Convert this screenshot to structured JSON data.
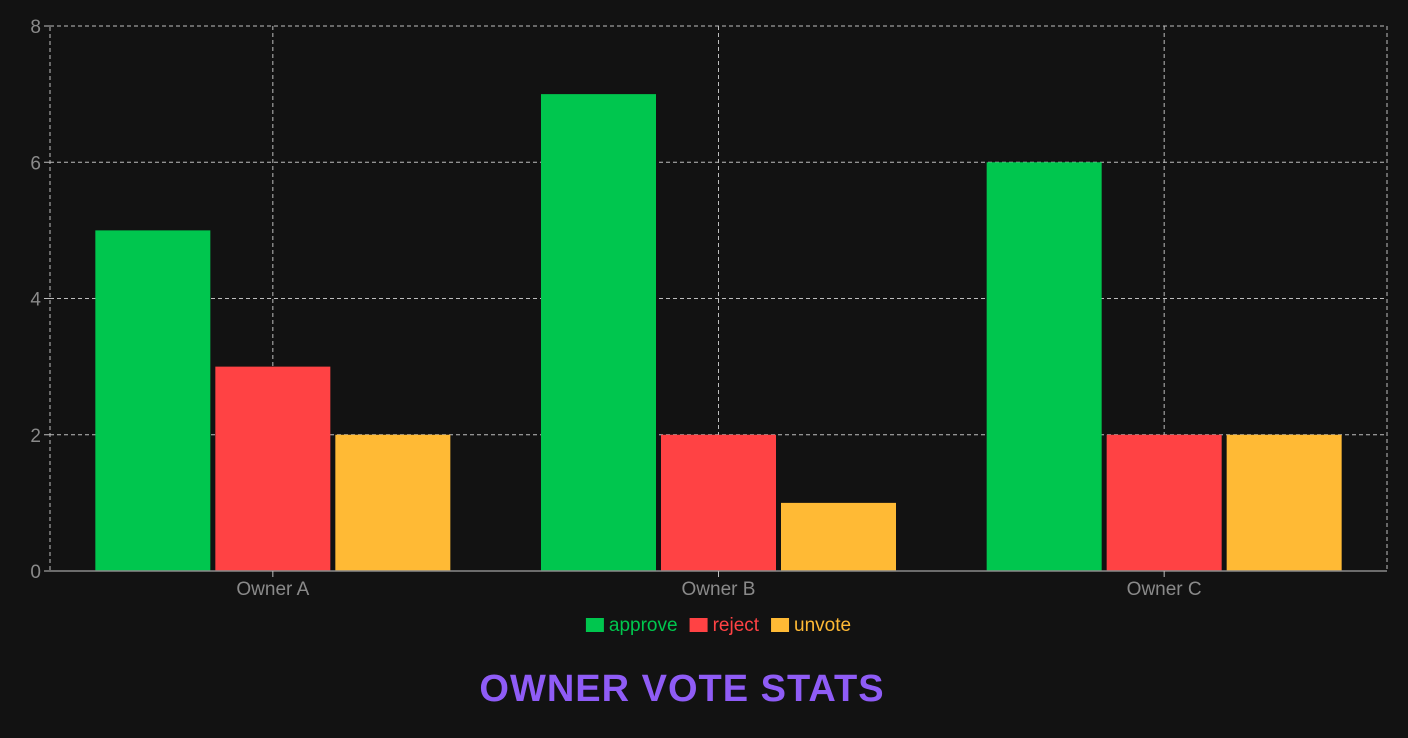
{
  "chart_data": {
    "type": "bar",
    "title": "OWNER VOTE STATS",
    "xlabel": "",
    "ylabel": "",
    "categories": [
      "Owner A",
      "Owner B",
      "Owner C"
    ],
    "series": [
      {
        "name": "approve",
        "values": [
          5,
          7,
          6
        ],
        "color": "#00c64e"
      },
      {
        "name": "reject",
        "values": [
          3,
          2,
          2
        ],
        "color": "#ff4244"
      },
      {
        "name": "unvote",
        "values": [
          2,
          1,
          2
        ],
        "color": "#ffba35"
      }
    ],
    "ylim": [
      0,
      8
    ],
    "yticks": [
      "0",
      "2",
      "4",
      "6",
      "8"
    ],
    "grid": true,
    "legend_position": "bottom-center"
  },
  "colors": {
    "background": "#121212",
    "title": "#8f5cf6",
    "grid": "#bdbdbd",
    "tick_text": "#8a8a8a"
  }
}
